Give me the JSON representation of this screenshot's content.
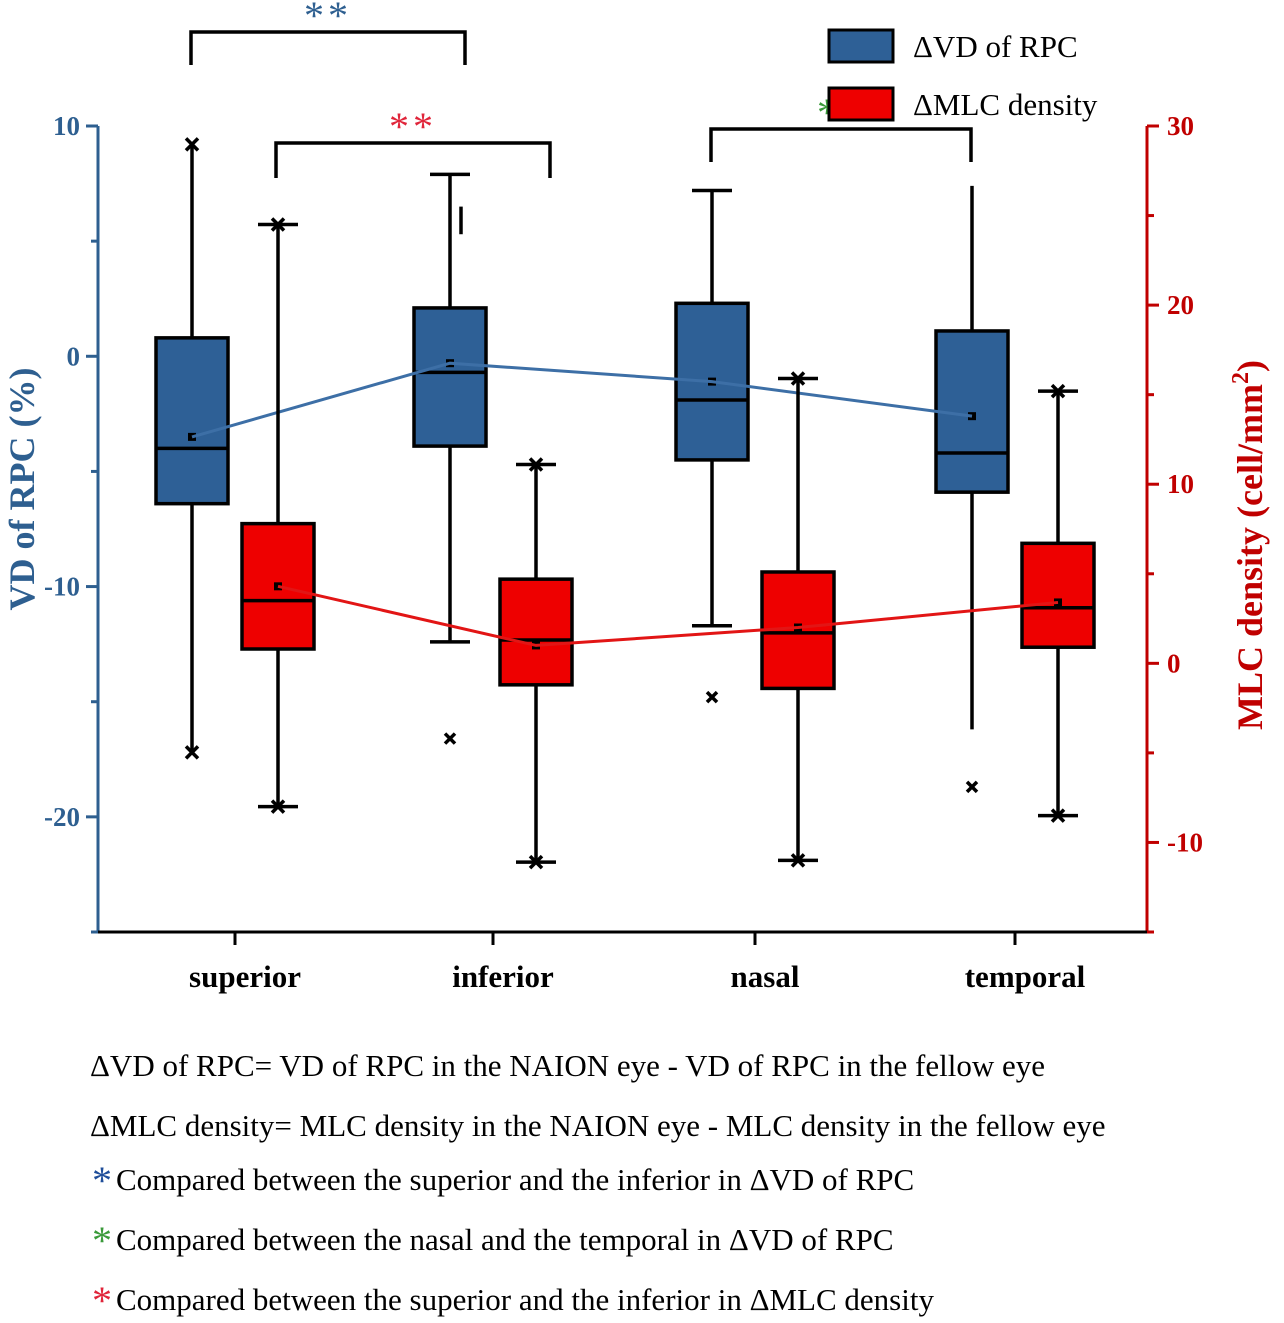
{
  "chart_data": {
    "type": "box",
    "categories": [
      "superior",
      "inferior",
      "nasal",
      "temporal"
    ],
    "left_axis": {
      "label": "VD of RPC (%)",
      "ylim": [
        -25,
        10
      ],
      "ticks": [
        10,
        0,
        -10,
        -20
      ],
      "tick_labels": [
        "10",
        "0",
        "-10",
        "-20"
      ],
      "color": "#2e5f90"
    },
    "right_axis": {
      "label_main": "MLC density (cell/mm",
      "label_sup": "2",
      "label_close": ")",
      "ylim": [
        -15,
        30
      ],
      "ticks": [
        30,
        20,
        10,
        0,
        -10
      ],
      "tick_labels": [
        "30",
        "20",
        "10",
        "0",
        "-10"
      ],
      "color": "#c00000"
    },
    "legend": {
      "position": "top-right",
      "entries": [
        {
          "label": "ΔVD of RPC",
          "color": "#2e6096"
        },
        {
          "label": "ΔMLC density",
          "color": "#ee0000"
        }
      ]
    },
    "series": [
      {
        "name": "ΔVD of RPC",
        "axis": "left",
        "color": "#2e6096",
        "line_color": "#3d6fa6",
        "boxes": [
          {
            "category": "superior",
            "whisker_low": -17.2,
            "q1": -6.4,
            "median": -4.0,
            "q3": 0.8,
            "whisker_high": 9.2,
            "mean": -3.5,
            "outliers": []
          },
          {
            "category": "inferior",
            "whisker_low": -12.4,
            "q1": -3.9,
            "median": -0.7,
            "q3": 2.1,
            "whisker_high": 7.9,
            "mean": -0.3,
            "outliers": [
              -16.6
            ]
          },
          {
            "category": "nasal",
            "whisker_low": -11.7,
            "q1": -4.5,
            "median": -1.9,
            "q3": 2.3,
            "whisker_high": 7.2,
            "mean": -1.1,
            "outliers": [
              -14.8
            ]
          },
          {
            "category": "temporal",
            "whisker_low": -16.2,
            "q1": -5.9,
            "median": -4.2,
            "q3": 1.1,
            "whisker_high": 7.4,
            "mean": -2.6,
            "outliers": [
              -18.7
            ]
          }
        ]
      },
      {
        "name": "ΔMLC density",
        "axis": "right",
        "color": "#ee0000",
        "line_color": "#e21515",
        "boxes": [
          {
            "category": "superior",
            "whisker_low": -8.0,
            "q1": 0.8,
            "median": 3.5,
            "q3": 7.8,
            "whisker_high": 24.5,
            "mean": 4.3,
            "outliers": []
          },
          {
            "category": "inferior",
            "whisker_low": -11.1,
            "q1": -1.2,
            "median": 1.3,
            "q3": 4.7,
            "whisker_high": 11.1,
            "mean": 1.0,
            "outliers": []
          },
          {
            "category": "nasal",
            "whisker_low": -11.0,
            "q1": -1.4,
            "median": 1.7,
            "q3": 5.1,
            "whisker_high": 15.9,
            "mean": 2.0,
            "outliers": []
          },
          {
            "category": "temporal",
            "whisker_low": -8.5,
            "q1": 0.9,
            "median": 3.1,
            "q3": 6.7,
            "whisker_high": 15.2,
            "mean": 3.4,
            "outliers": []
          }
        ]
      }
    ],
    "significance": [
      {
        "label": "**",
        "from": "superior",
        "to": "inferior",
        "series": "ΔVD of RPC",
        "color": "#2e5f90"
      },
      {
        "label": "**",
        "from": "superior",
        "to": "inferior",
        "series": "ΔMLC density",
        "color": "#e0253a"
      },
      {
        "label": "**",
        "from": "nasal",
        "to": "temporal",
        "series": "ΔVD of RPC",
        "color": "#3a9a3a"
      }
    ]
  },
  "notes": [
    {
      "text": "ΔVD of RPC= VD of RPC in the NAION eye -  VD of RPC in the fellow eye"
    },
    {
      "text": "ΔMLC density= MLC density in the NAION eye -  MLC density in the fellow eye"
    },
    {
      "star": "*",
      "star_color": "#1f4e9a",
      "text": "Compared between the superior and the inferior in ΔVD of RPC"
    },
    {
      "star": "*",
      "star_color": "#3a9a3a",
      "text": "Compared between the nasal and the temporal in ΔVD of RPC"
    },
    {
      "star": "*",
      "star_color": "#e0253a",
      "text": "Compared between the superior and the inferior in ΔMLC density"
    }
  ]
}
